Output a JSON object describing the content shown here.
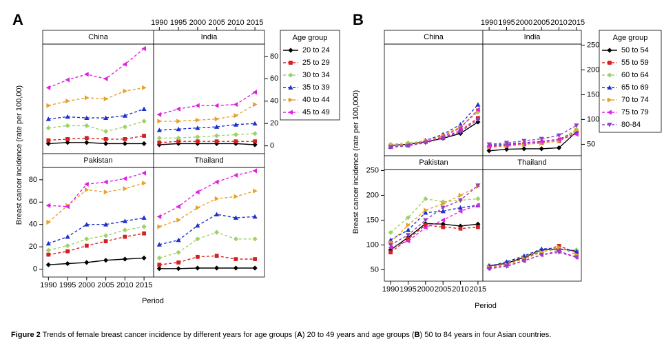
{
  "caption": [
    "Figure 2",
    " Trends of female breast cancer incidence by different years for age groups (",
    "A",
    ") 20 to 49 years and age groups (",
    "B",
    ") 50 to 84 years in four Asian countries."
  ],
  "chart_data": [
    {
      "type": "line",
      "label": "A",
      "ylabel": "Breast cancer incidence (rate per 100,00)",
      "xlabel": "Period",
      "legend_title": "Age group",
      "x": [
        1990,
        1995,
        2000,
        2005,
        2010,
        2015
      ],
      "xlim": [
        1988.5,
        2017.5
      ],
      "xticks": [
        1990,
        1995,
        2000,
        2005,
        2010,
        2015
      ],
      "ylim": [
        -7,
        91
      ],
      "yticks": [
        0,
        20,
        40,
        60,
        80
      ],
      "series": [
        {
          "name": "20 to 24",
          "color": "#000000",
          "marker": "diamond",
          "linestyle": "solid"
        },
        {
          "name": "25 to 29",
          "color": "#d42020",
          "marker": "square",
          "linestyle": "dashed"
        },
        {
          "name": "30 to 34",
          "color": "#9fd16a",
          "marker": "diamond",
          "linestyle": "dashed"
        },
        {
          "name": "35 to 39",
          "color": "#1c30d0",
          "marker": "triangle-up",
          "linestyle": "dashed"
        },
        {
          "name": "40 to 44",
          "color": "#e8a028",
          "marker": "triangle-right",
          "linestyle": "dashed"
        },
        {
          "name": "45 to 49",
          "color": "#e020e0",
          "marker": "triangle-left",
          "linestyle": "dashed"
        }
      ],
      "facets": [
        {
          "title": "China",
          "values": [
            [
              2,
              3,
              3,
              2,
              2,
              2
            ],
            [
              5,
              6,
              7,
              6,
              6,
              9
            ],
            [
              16,
              18,
              18,
              13,
              17,
              22
            ],
            [
              24,
              26,
              25,
              25,
              27,
              33
            ],
            [
              36,
              40,
              43,
              42,
              49,
              52
            ],
            [
              52,
              59,
              64,
              60,
              73,
              87
            ]
          ]
        },
        {
          "title": "India",
          "values": [
            [
              1,
              2,
              2,
              2,
              2,
              1
            ],
            [
              3,
              4,
              4,
              4,
              4,
              4
            ],
            [
              7,
              7,
              8,
              9,
              10,
              11
            ],
            [
              14,
              15,
              16,
              17,
              19,
              20
            ],
            [
              22,
              22,
              23,
              24,
              27,
              37
            ],
            [
              28,
              33,
              36,
              36,
              37,
              48
            ]
          ]
        },
        {
          "title": "Pakistan",
          "values": [
            [
              4,
              5,
              6,
              8,
              9,
              10
            ],
            [
              13,
              16,
              21,
              25,
              29,
              32
            ],
            [
              17,
              21,
              27,
              30,
              35,
              38
            ],
            [
              23,
              29,
              40,
              40,
              43,
              46
            ],
            [
              42,
              57,
              71,
              69,
              72,
              77
            ],
            [
              57,
              56,
              76,
              78,
              81,
              86
            ]
          ]
        },
        {
          "title": "Thailand",
          "values": [
            [
              0.5,
              0.5,
              1,
              1,
              1,
              1
            ],
            [
              4,
              6,
              11,
              12,
              9,
              9
            ],
            [
              10,
              15,
              27,
              33,
              27,
              27
            ],
            [
              22,
              26,
              39,
              49,
              46,
              47
            ],
            [
              38,
              44,
              55,
              63,
              65,
              70
            ],
            [
              47,
              56,
              69,
              78,
              84,
              88
            ]
          ]
        }
      ]
    },
    {
      "type": "line",
      "label": "B",
      "ylabel": "Breast cancer incidence (rate per 100,000)",
      "xlabel": "Period",
      "legend_title": "Age group",
      "x": [
        1990,
        1995,
        2000,
        2005,
        2010,
        2015
      ],
      "xlim": [
        1988.2,
        2016.4
      ],
      "xticks": [
        1990,
        1995,
        2000,
        2005,
        2010,
        2015
      ],
      "ylim": [
        27,
        252
      ],
      "yticks": [
        50,
        100,
        150,
        200,
        250
      ],
      "series": [
        {
          "name": "50 to 54",
          "color": "#000000",
          "marker": "diamond",
          "linestyle": "solid"
        },
        {
          "name": "55 to 59",
          "color": "#d42020",
          "marker": "square",
          "linestyle": "dashed"
        },
        {
          "name": "60 to 64",
          "color": "#9fd16a",
          "marker": "diamond",
          "linestyle": "dashed"
        },
        {
          "name": "65 to 69",
          "color": "#1c30d0",
          "marker": "triangle-up",
          "linestyle": "dashed"
        },
        {
          "name": "70 to 74",
          "color": "#e8a028",
          "marker": "triangle-right",
          "linestyle": "dashed"
        },
        {
          "name": "75 to 79",
          "color": "#e020e0",
          "marker": "triangle-left",
          "linestyle": "dashed"
        },
        {
          "name": "80-84",
          "color": "#9040c0",
          "marker": "triangle-down",
          "linestyle": "dashed"
        }
      ],
      "facets": [
        {
          "title": "China",
          "values": [
            [
              48,
              50,
              55,
              62,
              72,
              95
            ],
            [
              47,
              50,
              55,
              63,
              78,
              103
            ],
            [
              50,
              53,
              57,
              67,
              85,
              115
            ],
            [
              45,
              48,
              58,
              70,
              90,
              130
            ],
            [
              47,
              50,
              57,
              68,
              85,
              118
            ],
            [
              45,
              48,
              55,
              65,
              83,
              120
            ],
            [
              44,
              47,
              53,
              62,
              75,
              100
            ]
          ]
        },
        {
          "title": "India",
          "values": [
            [
              37,
              40,
              41,
              41,
              43,
              75
            ],
            [
              45,
              47,
              50,
              53,
              57,
              73
            ],
            [
              47,
              49,
              52,
              55,
              59,
              80
            ],
            [
              48,
              50,
              53,
              56,
              60,
              76
            ],
            [
              44,
              46,
              50,
              52,
              57,
              78
            ],
            [
              46,
              48,
              52,
              55,
              60,
              70
            ],
            [
              50,
              53,
              57,
              61,
              68,
              88
            ]
          ]
        },
        {
          "title": "Pakistan",
          "values": [
            [
              90,
              115,
              143,
              142,
              138,
              142
            ],
            [
              85,
              112,
              140,
              136,
              133,
              136
            ],
            [
              125,
              155,
              193,
              187,
              190,
              193
            ],
            [
              110,
              130,
              165,
              168,
              175,
              180
            ],
            [
              105,
              140,
              170,
              183,
              200,
              218
            ],
            [
              95,
              108,
              135,
              150,
              168,
              180
            ],
            [
              100,
              120,
              150,
              175,
              190,
              220
            ]
          ]
        },
        {
          "title": "Thailand",
          "values": [
            [
              58,
              63,
              75,
              90,
              92,
              88
            ],
            [
              55,
              63,
              73,
              88,
              98,
              85
            ],
            [
              57,
              65,
              77,
              88,
              90,
              90
            ],
            [
              57,
              66,
              78,
              92,
              93,
              87
            ],
            [
              55,
              60,
              72,
              85,
              95,
              80
            ],
            [
              53,
              58,
              68,
              80,
              88,
              75
            ],
            [
              52,
              57,
              68,
              80,
              85,
              75
            ]
          ]
        }
      ]
    }
  ]
}
